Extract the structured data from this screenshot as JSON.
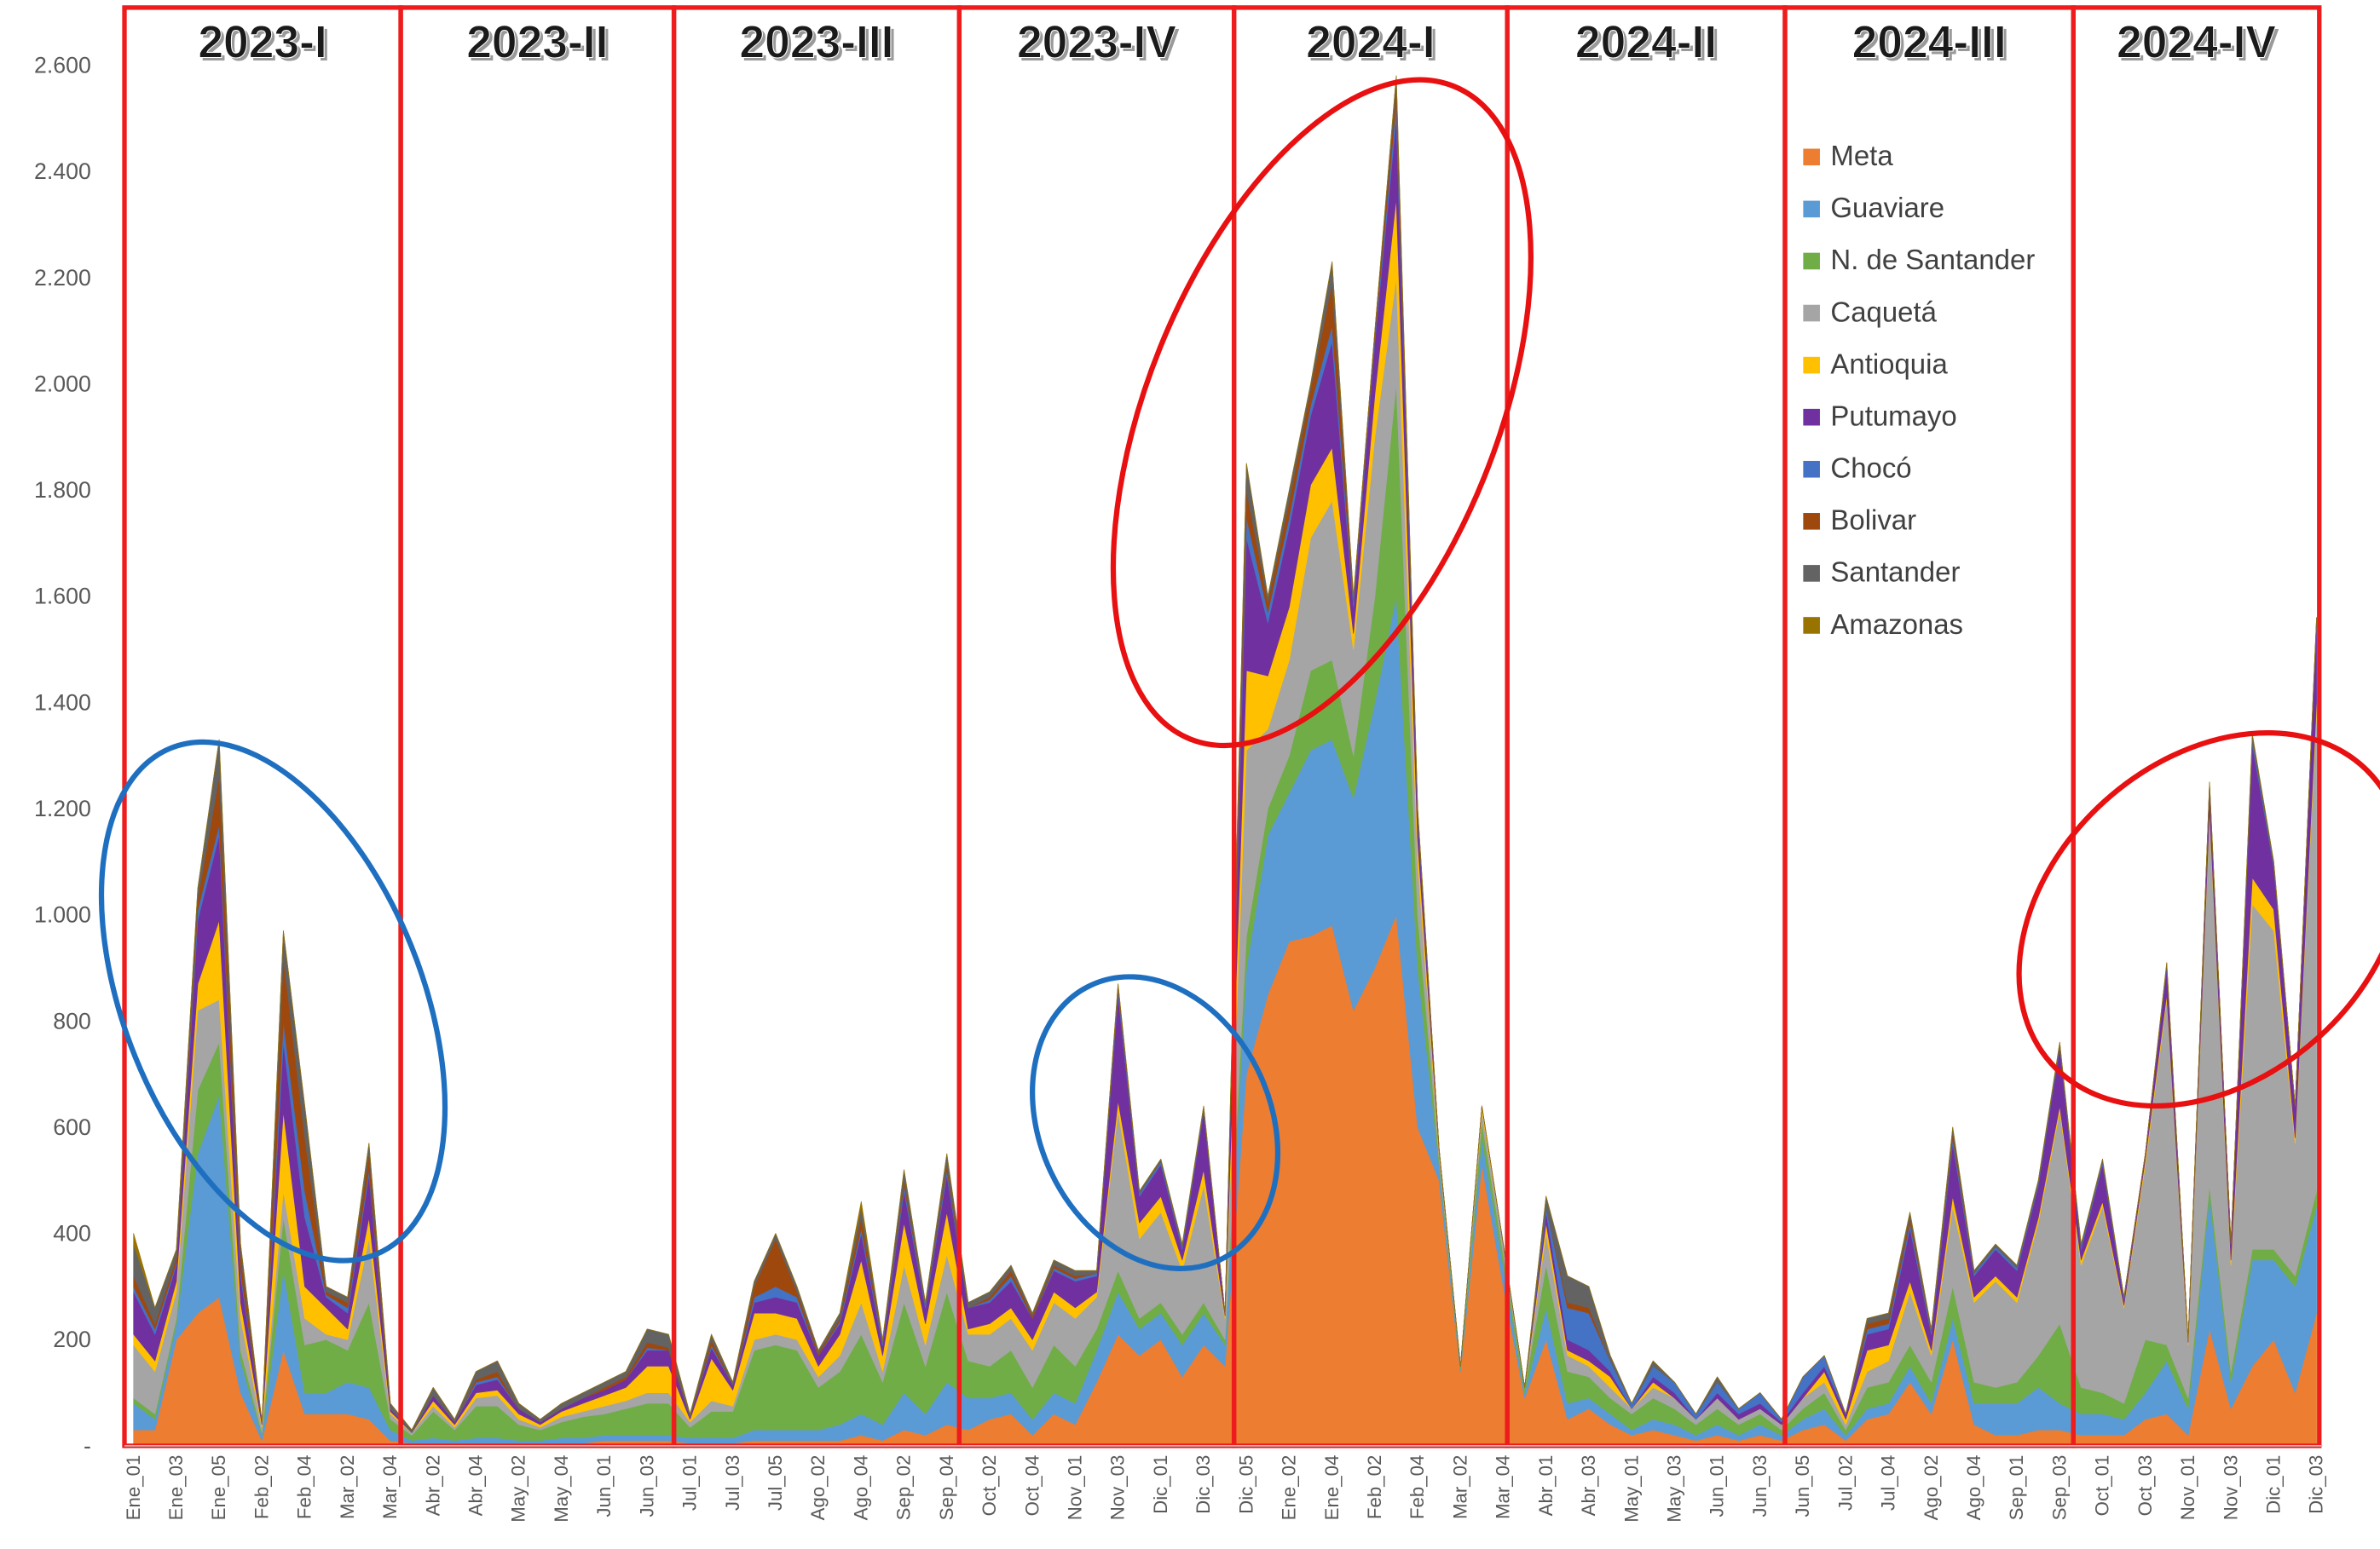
{
  "chart_data": {
    "type": "stacked_area",
    "categories": [
      "Ene_01",
      null,
      "Ene_03",
      null,
      "Ene_05",
      null,
      "Feb_02",
      null,
      "Feb_04",
      null,
      "Mar_02",
      null,
      "Mar_04",
      null,
      "Abr_02",
      null,
      "Abr_04",
      null,
      "May_02",
      null,
      "May_04",
      null,
      "Jun_01",
      null,
      "Jun_03",
      null,
      "Jul_01",
      null,
      "Jul_03",
      null,
      "Jul_05",
      null,
      "Ago_02",
      null,
      "Ago_04",
      null,
      "Sep_02",
      null,
      "Sep_04",
      null,
      "Oct_02",
      null,
      "Oct_04",
      null,
      "Nov_01",
      null,
      "Nov_03",
      null,
      "Dic_01",
      null,
      "Dic_03",
      null,
      "Dic_05",
      null,
      "Ene_02",
      null,
      "Ene_04",
      null,
      "Feb_02",
      null,
      "Feb_04",
      null,
      "Mar_02",
      null,
      "Mar_04",
      null,
      "Abr_01",
      null,
      "Abr_03",
      null,
      "May_01",
      null,
      "May_03",
      null,
      "Jun_01",
      null,
      "Jun_03",
      null,
      "Jun_05",
      null,
      "Jul_02",
      null,
      "Jul_04",
      null,
      "Ago_02",
      null,
      "Ago_04",
      null,
      "Sep_01",
      null,
      "Sep_03",
      null,
      "Oct_01",
      null,
      "Oct_03",
      null,
      "Nov_01",
      null,
      "Nov_03",
      null,
      "Dic_01",
      null,
      "Dic_03"
    ],
    "series": [
      {
        "name": "Meta",
        "color": "#ed7d31",
        "values": [
          30,
          30,
          200,
          250,
          280,
          100,
          10,
          180,
          60,
          60,
          60,
          50,
          10,
          5,
          5,
          5,
          5,
          5,
          5,
          5,
          5,
          5,
          10,
          10,
          10,
          10,
          5,
          5,
          5,
          10,
          10,
          10,
          10,
          10,
          20,
          10,
          30,
          20,
          40,
          30,
          50,
          60,
          20,
          60,
          40,
          120,
          210,
          170,
          200,
          130,
          190,
          150,
          700,
          850,
          950,
          960,
          980,
          820,
          900,
          1000,
          600,
          500,
          140,
          530,
          300,
          90,
          200,
          50,
          70,
          40,
          20,
          30,
          20,
          10,
          20,
          10,
          20,
          10,
          30,
          40,
          10,
          50,
          60,
          120,
          60,
          200,
          40,
          20,
          20,
          30,
          30,
          20,
          20,
          20,
          50,
          60,
          20,
          220,
          70,
          150,
          200,
          100,
          250
        ]
      },
      {
        "name": "Guaviare",
        "color": "#5b9bd5",
        "values": [
          50,
          20,
          30,
          300,
          380,
          60,
          10,
          150,
          40,
          40,
          60,
          60,
          20,
          5,
          10,
          5,
          10,
          10,
          5,
          5,
          10,
          10,
          10,
          10,
          10,
          10,
          10,
          10,
          10,
          20,
          20,
          20,
          20,
          30,
          40,
          30,
          70,
          40,
          80,
          60,
          40,
          40,
          30,
          40,
          40,
          60,
          80,
          50,
          50,
          60,
          60,
          40,
          200,
          300,
          280,
          350,
          350,
          400,
          500,
          600,
          300,
          30,
          5,
          50,
          40,
          10,
          60,
          30,
          20,
          20,
          10,
          20,
          20,
          10,
          20,
          10,
          20,
          10,
          20,
          30,
          10,
          20,
          20,
          30,
          20,
          40,
          40,
          60,
          60,
          80,
          50,
          40,
          40,
          30,
          50,
          100,
          50,
          250,
          50,
          200,
          150,
          200,
          200
        ]
      },
      {
        "name": "N. de Santander",
        "color": "#70ad47",
        "values": [
          10,
          10,
          10,
          120,
          100,
          20,
          5,
          100,
          90,
          100,
          60,
          160,
          20,
          10,
          50,
          20,
          60,
          60,
          30,
          20,
          30,
          40,
          40,
          50,
          60,
          60,
          20,
          50,
          50,
          150,
          160,
          150,
          80,
          100,
          150,
          80,
          170,
          90,
          170,
          70,
          60,
          80,
          60,
          90,
          70,
          40,
          40,
          20,
          20,
          20,
          20,
          10,
          60,
          50,
          70,
          150,
          150,
          80,
          200,
          400,
          100,
          10,
          5,
          30,
          20,
          10,
          80,
          60,
          40,
          30,
          30,
          40,
          30,
          20,
          30,
          20,
          20,
          10,
          20,
          30,
          10,
          40,
          40,
          40,
          40,
          60,
          40,
          30,
          40,
          60,
          150,
          50,
          40,
          30,
          100,
          30,
          20,
          20,
          20,
          20,
          20,
          20,
          30
        ]
      },
      {
        "name": "Caquetá",
        "color": "#a5a5a5",
        "values": [
          100,
          80,
          50,
          150,
          80,
          60,
          10,
          50,
          50,
          10,
          20,
          120,
          10,
          5,
          10,
          5,
          15,
          20,
          10,
          5,
          10,
          10,
          15,
          15,
          20,
          20,
          10,
          20,
          10,
          20,
          20,
          20,
          20,
          30,
          60,
          20,
          70,
          40,
          70,
          50,
          60,
          60,
          70,
          80,
          90,
          60,
          300,
          150,
          170,
          120,
          220,
          40,
          350,
          150,
          180,
          250,
          300,
          200,
          300,
          200,
          100,
          10,
          0,
          20,
          20,
          0,
          60,
          30,
          20,
          20,
          10,
          20,
          20,
          10,
          20,
          10,
          10,
          10,
          20,
          20,
          10,
          30,
          40,
          100,
          50,
          150,
          150,
          200,
          150,
          250,
          400,
          230,
          350,
          180,
          330,
          650,
          100,
          700,
          200,
          650,
          600,
          250,
          900
        ]
      },
      {
        "name": "Antioquia",
        "color": "#ffc000",
        "values": [
          20,
          20,
          20,
          50,
          150,
          30,
          5,
          150,
          60,
          50,
          20,
          40,
          5,
          0,
          10,
          5,
          10,
          10,
          10,
          5,
          10,
          15,
          20,
          25,
          50,
          50,
          5,
          80,
          30,
          50,
          40,
          40,
          20,
          40,
          80,
          30,
          80,
          40,
          80,
          10,
          20,
          20,
          20,
          20,
          20,
          10,
          20,
          30,
          30,
          20,
          30,
          5,
          150,
          100,
          100,
          100,
          100,
          30,
          80,
          150,
          40,
          5,
          0,
          10,
          0,
          0,
          20,
          10,
          10,
          20,
          0,
          10,
          0,
          0,
          0,
          0,
          0,
          0,
          0,
          20,
          10,
          40,
          30,
          20,
          10,
          20,
          10,
          10,
          10,
          10,
          10,
          10,
          10,
          5,
          10,
          10,
          5,
          10,
          10,
          50,
          40,
          10,
          20
        ]
      },
      {
        "name": "Putumayo",
        "color": "#7030a0",
        "values": [
          80,
          50,
          30,
          120,
          160,
          50,
          5,
          130,
          130,
          20,
          30,
          80,
          5,
          0,
          10,
          5,
          15,
          20,
          10,
          5,
          5,
          10,
          10,
          15,
          30,
          30,
          5,
          20,
          10,
          20,
          30,
          30,
          20,
          20,
          50,
          20,
          60,
          30,
          70,
          40,
          40,
          50,
          40,
          40,
          50,
          30,
          200,
          50,
          60,
          20,
          110,
          5,
          250,
          100,
          150,
          130,
          200,
          50,
          100,
          150,
          40,
          5,
          0,
          0,
          0,
          0,
          20,
          20,
          20,
          10,
          0,
          10,
          10,
          0,
          10,
          10,
          10,
          5,
          10,
          10,
          10,
          30,
          30,
          100,
          30,
          100,
          40,
          50,
          50,
          60,
          110,
          20,
          70,
          10,
          10,
          50,
          5,
          40,
          30,
          250,
          80,
          60,
          150
        ]
      },
      {
        "name": "Chocó",
        "color": "#4472c4",
        "values": [
          10,
          10,
          5,
          20,
          20,
          10,
          0,
          40,
          50,
          5,
          10,
          10,
          0,
          0,
          0,
          0,
          5,
          5,
          0,
          0,
          0,
          0,
          0,
          0,
          5,
          0,
          0,
          5,
          0,
          10,
          20,
          10,
          0,
          5,
          10,
          5,
          10,
          5,
          10,
          0,
          5,
          10,
          0,
          5,
          5,
          5,
          10,
          5,
          5,
          5,
          5,
          0,
          40,
          20,
          20,
          20,
          30,
          10,
          10,
          30,
          10,
          0,
          0,
          0,
          0,
          0,
          10,
          60,
          70,
          20,
          10,
          20,
          20,
          10,
          20,
          10,
          20,
          5,
          30,
          20,
          0,
          10,
          10,
          10,
          5,
          10,
          5,
          5,
          5,
          5,
          5,
          5,
          5,
          5,
          0,
          5,
          0,
          5,
          0,
          10,
          5,
          0,
          5
        ]
      },
      {
        "name": "Bolivar",
        "color": "#9e480e",
        "values": [
          20,
          10,
          10,
          20,
          90,
          30,
          0,
          120,
          100,
          5,
          10,
          30,
          0,
          0,
          0,
          0,
          5,
          10,
          0,
          0,
          0,
          0,
          5,
          5,
          10,
          5,
          0,
          10,
          0,
          20,
          90,
          10,
          5,
          5,
          20,
          0,
          10,
          0,
          10,
          0,
          5,
          10,
          5,
          5,
          5,
          0,
          5,
          0,
          0,
          0,
          0,
          0,
          50,
          20,
          30,
          30,
          80,
          5,
          10,
          30,
          5,
          0,
          0,
          0,
          0,
          0,
          0,
          10,
          10,
          0,
          0,
          0,
          0,
          0,
          0,
          0,
          0,
          0,
          0,
          0,
          0,
          10,
          10,
          10,
          0,
          10,
          0,
          0,
          0,
          0,
          0,
          0,
          0,
          0,
          0,
          0,
          0,
          0,
          0,
          0,
          0,
          0,
          0
        ]
      },
      {
        "name": "Santander",
        "color": "#636363",
        "values": [
          60,
          30,
          15,
          20,
          70,
          20,
          0,
          50,
          60,
          10,
          10,
          20,
          10,
          5,
          15,
          5,
          15,
          20,
          10,
          5,
          10,
          10,
          10,
          10,
          25,
          25,
          5,
          10,
          5,
          10,
          10,
          10,
          5,
          10,
          20,
          5,
          20,
          5,
          20,
          10,
          10,
          10,
          5,
          10,
          10,
          5,
          5,
          5,
          5,
          5,
          5,
          0,
          50,
          10,
          20,
          10,
          40,
          5,
          0,
          20,
          5,
          0,
          0,
          0,
          0,
          0,
          20,
          50,
          40,
          10,
          0,
          10,
          0,
          0,
          10,
          0,
          0,
          0,
          0,
          0,
          0,
          10,
          10,
          10,
          5,
          10,
          5,
          5,
          5,
          5,
          5,
          5,
          5,
          0,
          0,
          5,
          0,
          5,
          0,
          10,
          5,
          0,
          5
        ]
      },
      {
        "name": "Amazonas",
        "color": "#997300",
        "values": [
          20,
          0,
          0,
          0,
          0,
          0,
          0,
          0,
          0,
          0,
          0,
          0,
          0,
          0,
          0,
          0,
          0,
          0,
          0,
          0,
          0,
          0,
          0,
          0,
          0,
          0,
          0,
          0,
          0,
          0,
          0,
          0,
          0,
          0,
          10,
          0,
          0,
          0,
          0,
          0,
          0,
          0,
          0,
          0,
          0,
          0,
          0,
          0,
          0,
          0,
          0,
          0,
          0,
          0,
          0,
          0,
          0,
          0,
          0,
          0,
          0,
          0,
          0,
          0,
          0,
          0,
          0,
          0,
          0,
          0,
          0,
          0,
          0,
          0,
          0,
          0,
          0,
          0,
          0,
          0,
          0,
          0,
          0,
          0,
          0,
          0,
          0,
          0,
          0,
          0,
          0,
          0,
          0,
          0,
          0,
          0,
          0,
          0,
          0,
          0,
          0,
          0,
          0
        ]
      }
    ],
    "ylim": [
      0,
      2700
    ],
    "yticks": [
      {
        "value": 0,
        "label": "-"
      },
      200,
      400,
      600,
      800,
      {
        "value": 1000,
        "label": "1.000"
      },
      {
        "value": 1200,
        "label": "1.200"
      },
      {
        "value": 1400,
        "label": "1.400"
      },
      {
        "value": 1600,
        "label": "1.600"
      },
      {
        "value": 1800,
        "label": "1.800"
      },
      {
        "value": 2000,
        "label": "2.000"
      },
      {
        "value": 2200,
        "label": "2.200"
      },
      {
        "value": 2400,
        "label": "2.400"
      },
      {
        "value": 2600,
        "label": "2.600"
      }
    ],
    "grid": true,
    "legend": "top-right",
    "annotations": [
      "2023-I",
      "2023-II",
      "2023-III",
      "2023-IV",
      "2024-I",
      "2024-II",
      "2024-III",
      "2024-IV"
    ]
  }
}
